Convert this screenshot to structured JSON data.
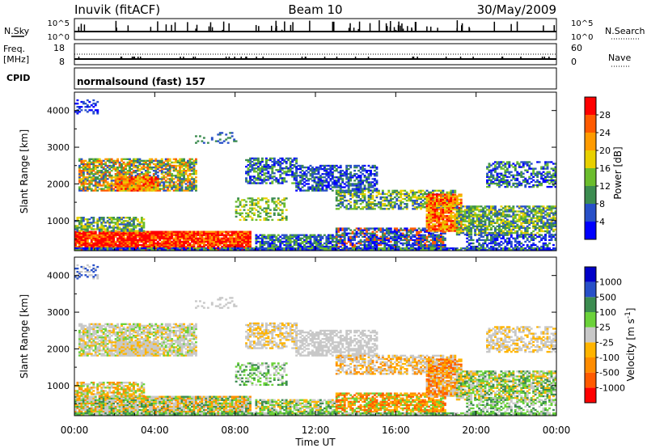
{
  "header": {
    "station": "Inuvik (fitACF)",
    "beam": "Beam 10",
    "date": "30/May/2009"
  },
  "panels": {
    "nsky": {
      "left_label": "N.Sky",
      "right_label": "N.Search",
      "left_ticks": [
        "10^5",
        "10^0"
      ],
      "right_ticks": [
        "10^5",
        "10^0"
      ]
    },
    "freq": {
      "left_label_1": "Freq.",
      "left_label_2": "[MHz]",
      "left_ticks": [
        "18",
        "8"
      ],
      "right_label": "Nave",
      "right_ticks": [
        "60",
        "0"
      ]
    },
    "cpid": {
      "label": "CPID",
      "text": "normalsound (fast) 157"
    }
  },
  "colors": {
    "power": [
      "#0000ff",
      "#2850c8",
      "#3c8c50",
      "#6bbd2d",
      "#e8d000",
      "#ff9b00",
      "#ff5a00",
      "#ff0000"
    ],
    "velocity": [
      "#ff0000",
      "#ff5a00",
      "#ff8c00",
      "#ffb400",
      "#c8c8c8",
      "#6bd23a",
      "#3c8c50",
      "#2850c8",
      "#0000c8"
    ]
  },
  "chart_data": [
    {
      "type": "heatmap",
      "name": "power",
      "ylabel": "Slant Range [km]",
      "yticks": [
        "1000",
        "2000",
        "3000",
        "4000"
      ],
      "ylim": [
        180,
        4500
      ],
      "xlim": [
        0,
        24
      ],
      "colorbar_label": "Power [dB]",
      "colorbar_ticks": [
        "4",
        "8",
        "12",
        "16",
        "20",
        "24",
        "28"
      ],
      "colorbar_range": [
        0,
        32
      ]
    },
    {
      "type": "heatmap",
      "name": "velocity",
      "ylabel": "Slant Range [km]",
      "yticks": [
        "1000",
        "2000",
        "3000",
        "4000"
      ],
      "ylim": [
        180,
        4500
      ],
      "xlim": [
        0,
        24
      ],
      "colorbar_label": "Velocity [m s",
      "colorbar_label_sup": "-1",
      "colorbar_label_end": "]",
      "colorbar_ticks": [
        "-1000",
        "-500",
        "-100",
        "-25",
        "25",
        "100",
        "500",
        "1000"
      ]
    }
  ],
  "xaxis": {
    "label": "Time UT",
    "ticks": [
      "00:00",
      "04:00",
      "08:00",
      "12:00",
      "16:00",
      "20:00",
      "00:00"
    ]
  }
}
